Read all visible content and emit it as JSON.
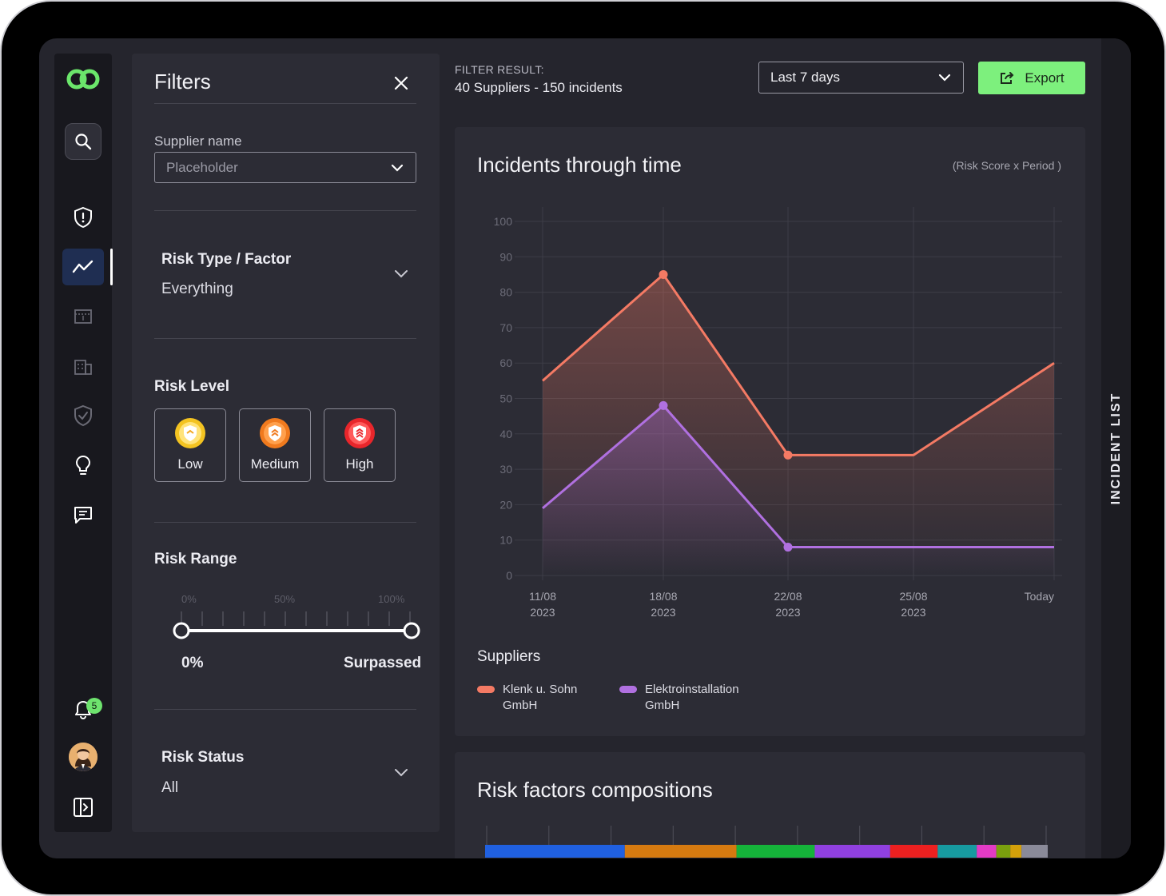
{
  "nav": {
    "badge_count": "5"
  },
  "filters": {
    "title": "Filters",
    "supplier_label": "Supplier name",
    "supplier_placeholder": "Placeholder",
    "risk_type_heading": "Risk Type / Factor",
    "risk_type_value": "Everything",
    "risk_level_heading": "Risk Level",
    "risk_levels": [
      {
        "label": "Low",
        "color": "#f3c321"
      },
      {
        "label": "Medium",
        "color": "#f07a1e"
      },
      {
        "label": "High",
        "color": "#e8262b"
      }
    ],
    "risk_range_heading": "Risk Range",
    "range_ticks": [
      "0%",
      "50%",
      "100%"
    ],
    "range_min_label": "0%",
    "range_max_label": "Surpassed",
    "risk_status_heading": "Risk Status",
    "risk_status_value": "All"
  },
  "header": {
    "filter_result_label": "FILTER RESULT:",
    "filter_result_value": "40 Suppliers - 150 incidents",
    "period_value": "Last 7 days",
    "export_label": "Export"
  },
  "incidents_card": {
    "title": "Incidents through time",
    "subtitle": "(Risk Score x Period )",
    "suppliers_title": "Suppliers"
  },
  "chart_data": {
    "type": "line",
    "title": "Incidents through time",
    "subtitle": "(Risk Score x Period )",
    "x": [
      "11/08 2023",
      "18/08 2023",
      "22/08 2023",
      "25/08 2023",
      "Today"
    ],
    "y_ticks": [
      0,
      10,
      20,
      30,
      40,
      50,
      60,
      70,
      80,
      90,
      100
    ],
    "ylim": [
      0,
      100
    ],
    "grid": true,
    "legend": "bottom-left",
    "series": [
      {
        "name": "Klenk u. Sohn GmbH",
        "color": "#f47a64",
        "values": [
          55,
          85,
          34,
          34,
          60
        ],
        "markers": [
          false,
          true,
          true,
          false,
          false
        ]
      },
      {
        "name": "Elektroinstallation GmbH",
        "color": "#b070e0",
        "values": [
          19,
          48,
          8,
          8,
          8
        ],
        "markers": [
          false,
          true,
          true,
          false,
          false
        ]
      }
    ]
  },
  "risk_card": {
    "title": "Risk factors compositions",
    "segments": [
      {
        "color": "#2060e0",
        "value": 25
      },
      {
        "color": "#d57a10",
        "value": 20
      },
      {
        "color": "#15b33a",
        "value": 14
      },
      {
        "color": "#9040e0",
        "value": 13.5
      },
      {
        "color": "#ec2020",
        "value": 8.5
      },
      {
        "color": "#179aa0",
        "value": 7
      },
      {
        "color": "#e33bc5",
        "value": 3.5
      },
      {
        "color": "#7aa00e",
        "value": 2.5
      },
      {
        "color": "#d4a00a",
        "value": 2
      },
      {
        "color": "#8a8a99",
        "value": 4.7
      }
    ]
  },
  "side_tab": {
    "label": "INCIDENT LIST"
  }
}
